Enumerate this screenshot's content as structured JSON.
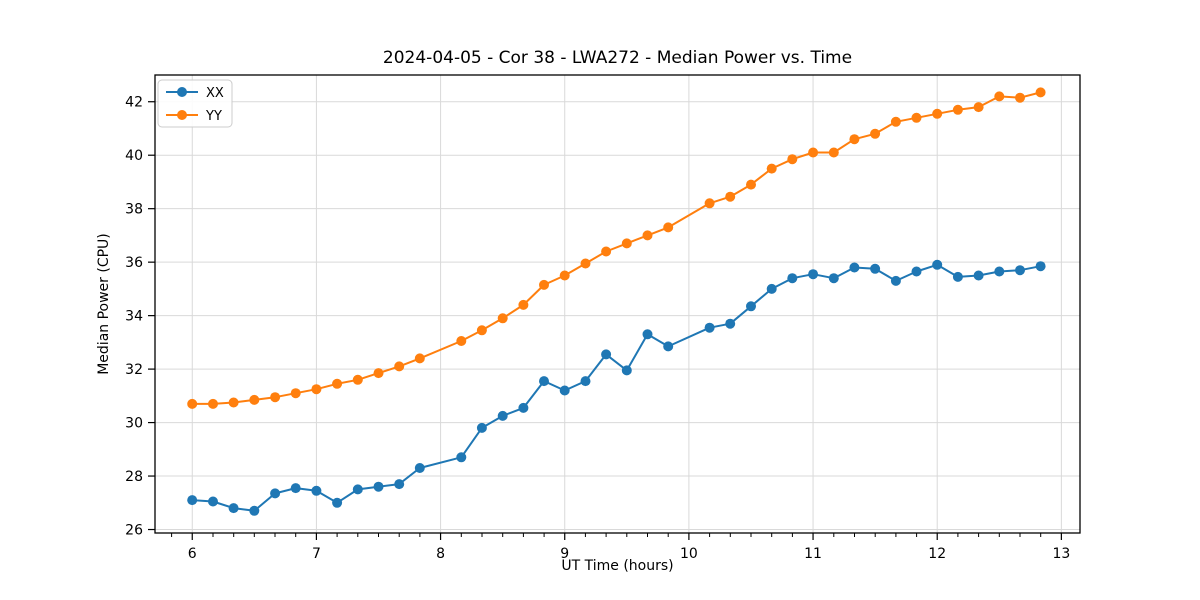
{
  "chart_data": {
    "type": "line",
    "title": "2024-04-05 - Cor 38 - LWA272 - Median Power vs. Time",
    "xlabel": "UT Time (hours)",
    "ylabel": "Median Power (CPU)",
    "x": [
      6.0,
      6.167,
      6.333,
      6.5,
      6.667,
      6.833,
      7.0,
      7.167,
      7.333,
      7.5,
      7.667,
      7.833,
      8.167,
      8.333,
      8.5,
      8.667,
      8.833,
      9.0,
      9.167,
      9.333,
      9.5,
      9.667,
      9.833,
      10.167,
      10.333,
      10.5,
      10.667,
      10.833,
      11.0,
      11.167,
      11.333,
      11.5,
      11.667,
      11.833,
      12.0,
      12.167,
      12.333,
      12.5,
      12.667,
      12.833
    ],
    "series": [
      {
        "name": "XX",
        "color": "#1f77b4",
        "values": [
          27.1,
          27.05,
          26.8,
          26.7,
          27.35,
          27.55,
          27.45,
          27.0,
          27.5,
          27.6,
          27.7,
          28.3,
          28.7,
          29.8,
          30.25,
          30.55,
          31.55,
          31.2,
          31.55,
          32.55,
          31.95,
          33.3,
          32.85,
          33.55,
          33.7,
          34.35,
          35.0,
          35.4,
          35.55,
          35.4,
          35.8,
          35.75,
          35.3,
          35.65,
          35.9,
          35.45,
          35.5,
          35.65,
          35.7,
          35.85
        ]
      },
      {
        "name": "YY",
        "color": "#ff7f0e",
        "values": [
          30.7,
          30.7,
          30.75,
          30.85,
          30.95,
          31.1,
          31.25,
          31.45,
          31.6,
          31.85,
          32.1,
          32.4,
          33.05,
          33.45,
          33.9,
          34.4,
          35.15,
          35.5,
          35.95,
          36.4,
          36.7,
          37.0,
          37.3,
          38.2,
          38.45,
          38.9,
          39.5,
          39.85,
          40.1,
          40.1,
          40.6,
          40.8,
          41.25,
          41.4,
          41.55,
          41.7,
          41.8,
          42.2,
          42.15,
          42.35
        ]
      }
    ],
    "xticks": [
      6,
      7,
      8,
      9,
      10,
      11,
      12,
      13
    ],
    "yticks": [
      26,
      28,
      30,
      32,
      34,
      36,
      38,
      40,
      42
    ],
    "xlim": [
      5.7,
      13.15
    ],
    "ylim": [
      25.87,
      43.0
    ],
    "x_minor_tick_step": 0.16667,
    "grid": true,
    "grid_color": "#d9d9d9",
    "axis_color": "#000000",
    "legend_position": "upper-left",
    "marker": "circle"
  }
}
